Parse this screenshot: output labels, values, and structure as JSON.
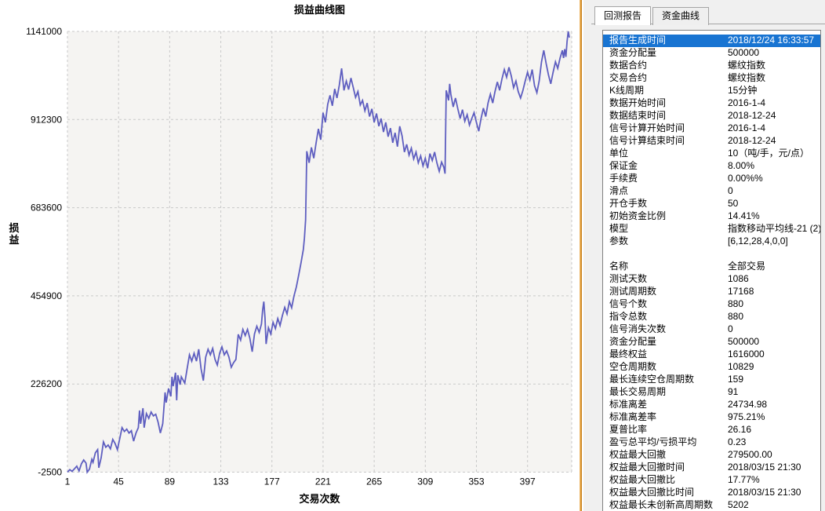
{
  "colors": {
    "line": "#5e5ec0",
    "plot_bg": "#f5f4f2",
    "grid": "#c9c9c9",
    "selection_bg": "#1874d2",
    "selection_text": "#ffffff",
    "panel_bg": "#f0f0f0",
    "splitter_orange": "#dd9733"
  },
  "chart_data": {
    "type": "line",
    "title": "损益曲线图",
    "xlabel": "交易次数",
    "ylabel": "损益",
    "legend": [],
    "grid": "dashed",
    "x_ticks": [
      1,
      45,
      89,
      133,
      177,
      221,
      265,
      309,
      353,
      397
    ],
    "y_ticks": [
      -2500,
      226200,
      454900,
      683600,
      912300,
      1141000
    ],
    "xlim": [
      1,
      435
    ],
    "ylim": [
      -2500,
      1141000
    ],
    "series": [
      {
        "name": "损益",
        "points": [
          [
            1,
            -2500
          ],
          [
            3,
            4000
          ],
          [
            5,
            -500
          ],
          [
            7,
            6000
          ],
          [
            9,
            13000
          ],
          [
            11,
            500
          ],
          [
            13,
            19000
          ],
          [
            15,
            29000
          ],
          [
            17,
            21000
          ],
          [
            18,
            -2500
          ],
          [
            20,
            5500
          ],
          [
            22,
            31000
          ],
          [
            23,
            23000
          ],
          [
            25,
            47500
          ],
          [
            27,
            56000
          ],
          [
            28,
            9000
          ],
          [
            30,
            35000
          ],
          [
            32,
            76000
          ],
          [
            34,
            62000
          ],
          [
            36,
            68000
          ],
          [
            38,
            58000
          ],
          [
            40,
            82500
          ],
          [
            42,
            72000
          ],
          [
            44,
            56000
          ],
          [
            46,
            84500
          ],
          [
            48,
            113000
          ],
          [
            50,
            103000
          ],
          [
            52,
            109000
          ],
          [
            54,
            99000
          ],
          [
            56,
            105000
          ],
          [
            58,
            78000
          ],
          [
            60,
            99000
          ],
          [
            62,
            113000
          ],
          [
            63,
            157500
          ],
          [
            64,
            123000
          ],
          [
            66,
            163500
          ],
          [
            67,
            113000
          ],
          [
            69,
            149500
          ],
          [
            71,
            137000
          ],
          [
            73,
            153500
          ],
          [
            75,
            143500
          ],
          [
            77,
            147500
          ],
          [
            79,
            127000
          ],
          [
            81,
            99000
          ],
          [
            83,
            123000
          ],
          [
            85,
            204500
          ],
          [
            86,
            178000
          ],
          [
            88,
            214500
          ],
          [
            90,
            194000
          ],
          [
            91,
            245000
          ],
          [
            92,
            220500
          ],
          [
            94,
            255500
          ],
          [
            95,
            184000
          ],
          [
            96,
            249000
          ],
          [
            98,
            224500
          ],
          [
            99,
            245000
          ],
          [
            102,
            228500
          ],
          [
            104,
            265500
          ],
          [
            106,
            302000
          ],
          [
            108,
            285500
          ],
          [
            110,
            306000
          ],
          [
            112,
            285500
          ],
          [
            114,
            316500
          ],
          [
            116,
            265500
          ],
          [
            118,
            235000
          ],
          [
            120,
            296000
          ],
          [
            122,
            316500
          ],
          [
            124,
            302000
          ],
          [
            126,
            318500
          ],
          [
            128,
            290000
          ],
          [
            130,
            275500
          ],
          [
            132,
            306000
          ],
          [
            134,
            322500
          ],
          [
            136,
            302000
          ],
          [
            138,
            312000
          ],
          [
            140,
            296000
          ],
          [
            142,
            269500
          ],
          [
            144,
            281500
          ],
          [
            146,
            290000
          ],
          [
            148,
            355000
          ],
          [
            150,
            340000
          ],
          [
            152,
            368000
          ],
          [
            154,
            352000
          ],
          [
            156,
            368000
          ],
          [
            158,
            345000
          ],
          [
            160,
            310000
          ],
          [
            162,
            356000
          ],
          [
            164,
            376000
          ],
          [
            166,
            360000
          ],
          [
            168,
            382000
          ],
          [
            169,
            418000
          ],
          [
            170,
            440000
          ],
          [
            171,
            398000
          ],
          [
            172,
            330000
          ],
          [
            174,
            372000
          ],
          [
            176,
            356000
          ],
          [
            178,
            386000
          ],
          [
            180,
            370000
          ],
          [
            182,
            396000
          ],
          [
            184,
            378000
          ],
          [
            186,
            404000
          ],
          [
            188,
            425000
          ],
          [
            190,
            408000
          ],
          [
            192,
            440000
          ],
          [
            194,
            424000
          ],
          [
            196,
            455000
          ],
          [
            198,
            478000
          ],
          [
            200,
            508000
          ],
          [
            202,
            540000
          ],
          [
            204,
            575000
          ],
          [
            205,
            605000
          ],
          [
            206,
            652000
          ],
          [
            207,
            830000
          ],
          [
            209,
            800000
          ],
          [
            211,
            840000
          ],
          [
            213,
            812000
          ],
          [
            215,
            852000
          ],
          [
            217,
            888000
          ],
          [
            219,
            860000
          ],
          [
            221,
            930000
          ],
          [
            223,
            905000
          ],
          [
            225,
            952000
          ],
          [
            227,
            975000
          ],
          [
            229,
            948000
          ],
          [
            231,
            992000
          ],
          [
            233,
            968000
          ],
          [
            235,
            1002000
          ],
          [
            237,
            1045000
          ],
          [
            239,
            988000
          ],
          [
            241,
            1012000
          ],
          [
            243,
            990000
          ],
          [
            245,
            1020000
          ],
          [
            247,
            995000
          ],
          [
            249,
            970000
          ],
          [
            251,
            985000
          ],
          [
            253,
            950000
          ],
          [
            255,
            962000
          ],
          [
            257,
            935000
          ],
          [
            259,
            955000
          ],
          [
            261,
            920000
          ],
          [
            263,
            940000
          ],
          [
            265,
            905000
          ],
          [
            267,
            928000
          ],
          [
            269,
            895000
          ],
          [
            271,
            915000
          ],
          [
            273,
            880000
          ],
          [
            275,
            905000
          ],
          [
            277,
            868000
          ],
          [
            279,
            890000
          ],
          [
            281,
            852000
          ],
          [
            283,
            878000
          ],
          [
            285,
            842000
          ],
          [
            287,
            895000
          ],
          [
            289,
            870000
          ],
          [
            291,
            828000
          ],
          [
            293,
            848000
          ],
          [
            295,
            820000
          ],
          [
            297,
            838000
          ],
          [
            299,
            810000
          ],
          [
            301,
            828000
          ],
          [
            303,
            800000
          ],
          [
            305,
            818000
          ],
          [
            307,
            792000
          ],
          [
            309,
            812000
          ],
          [
            311,
            786000
          ],
          [
            313,
            824000
          ],
          [
            315,
            806000
          ],
          [
            317,
            828000
          ],
          [
            319,
            800000
          ],
          [
            321,
            778000
          ],
          [
            323,
            802000
          ],
          [
            325,
            788000
          ],
          [
            326,
            772000
          ],
          [
            327,
            988000
          ],
          [
            329,
            962000
          ],
          [
            330,
            1005000
          ],
          [
            331,
            978000
          ],
          [
            333,
            945000
          ],
          [
            335,
            968000
          ],
          [
            337,
            940000
          ],
          [
            339,
            915000
          ],
          [
            341,
            938000
          ],
          [
            343,
            908000
          ],
          [
            345,
            925000
          ],
          [
            347,
            898000
          ],
          [
            349,
            915000
          ],
          [
            351,
            930000
          ],
          [
            353,
            905000
          ],
          [
            355,
            882000
          ],
          [
            357,
            915000
          ],
          [
            359,
            942000
          ],
          [
            361,
            920000
          ],
          [
            363,
            955000
          ],
          [
            365,
            978000
          ],
          [
            367,
            955000
          ],
          [
            369,
            985000
          ],
          [
            371,
            1010000
          ],
          [
            373,
            988000
          ],
          [
            375,
            1018000
          ],
          [
            377,
            1042000
          ],
          [
            379,
            1022000
          ],
          [
            381,
            1048000
          ],
          [
            383,
            1025000
          ],
          [
            385,
            995000
          ],
          [
            387,
            1012000
          ],
          [
            389,
            985000
          ],
          [
            391,
            968000
          ],
          [
            393,
            988000
          ],
          [
            395,
            1012000
          ],
          [
            397,
            1035000
          ],
          [
            399,
            1015000
          ],
          [
            401,
            1042000
          ],
          [
            403,
            1000000
          ],
          [
            405,
            982000
          ],
          [
            407,
            1012000
          ],
          [
            409,
            1062000
          ],
          [
            411,
            1092000
          ],
          [
            413,
            1058000
          ],
          [
            415,
            1028000
          ],
          [
            417,
            1005000
          ],
          [
            419,
            1035000
          ],
          [
            421,
            1062000
          ],
          [
            423,
            1045000
          ],
          [
            425,
            1072000
          ],
          [
            427,
            1092000
          ],
          [
            428,
            1072000
          ],
          [
            429,
            1095000
          ],
          [
            430,
            1075000
          ],
          [
            431,
            1115000
          ],
          [
            432,
            1141000
          ],
          [
            433,
            1125000
          ]
        ]
      }
    ]
  },
  "right_panel": {
    "tabs": [
      {
        "label": "回测报告",
        "active": true
      },
      {
        "label": "资金曲线",
        "active": false
      }
    ],
    "report": {
      "rows": [
        {
          "label": "报告生成时间",
          "value": "2018/12/24 16:33:57",
          "selected": true
        },
        {
          "label": "资金分配量",
          "value": "500000"
        },
        {
          "label": "数据合约",
          "value": "螺纹指数"
        },
        {
          "label": "交易合约",
          "value": "螺纹指数"
        },
        {
          "label": "K线周期",
          "value": "15分钟"
        },
        {
          "label": "数据开始时间",
          "value": "2016-1-4"
        },
        {
          "label": "数据结束时间",
          "value": "2018-12-24"
        },
        {
          "label": "信号计算开始时间",
          "value": "2016-1-4"
        },
        {
          "label": "信号计算结束时间",
          "value": "2018-12-24"
        },
        {
          "label": "单位",
          "value": "10（吨/手，元/点）"
        },
        {
          "label": "保证金",
          "value": "8.00%"
        },
        {
          "label": "手续费",
          "value": "0.00%%"
        },
        {
          "label": "滑点",
          "value": "0"
        },
        {
          "label": "开仓手数",
          "value": "50"
        },
        {
          "label": "初始资金比例",
          "value": "14.41%"
        },
        {
          "label": "模型",
          "value": "指数移动平均线-21 (2)"
        },
        {
          "label": "参数",
          "value": "[6,12,28,4,0,0]"
        },
        {
          "blank": true
        },
        {
          "label": "名称",
          "value": "全部交易"
        },
        {
          "label": "测试天数",
          "value": "1086"
        },
        {
          "label": "测试周期数",
          "value": "17168"
        },
        {
          "label": "信号个数",
          "value": "880"
        },
        {
          "label": "指令总数",
          "value": "880"
        },
        {
          "label": "信号消失次数",
          "value": "0"
        },
        {
          "label": "资金分配量",
          "value": "500000"
        },
        {
          "label": "最终权益",
          "value": "1616000"
        },
        {
          "label": "空仓周期数",
          "value": "10829"
        },
        {
          "label": "最长连续空仓周期数",
          "value": "159"
        },
        {
          "label": "最长交易周期",
          "value": "91"
        },
        {
          "label": "标准离差",
          "value": "24734.98"
        },
        {
          "label": "标准离差率",
          "value": "975.21%"
        },
        {
          "label": "夏普比率",
          "value": "26.16"
        },
        {
          "label": "盈亏总平均/亏损平均",
          "value": "0.23"
        },
        {
          "label": "权益最大回撤",
          "value": "279500.00"
        },
        {
          "label": "权益最大回撤时间",
          "value": "2018/03/15 21:30"
        },
        {
          "label": "权益最大回撤比",
          "value": "17.77%"
        },
        {
          "label": "权益最大回撤比时间",
          "value": "2018/03/15 21:30"
        },
        {
          "label": "权益最长未创新高周期数",
          "value": "5202"
        }
      ]
    }
  }
}
